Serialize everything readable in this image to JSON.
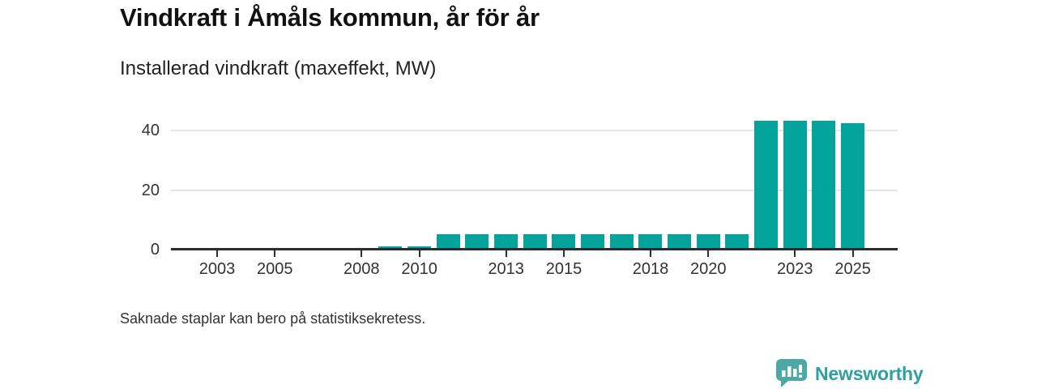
{
  "header": {
    "title": "Vindkraft i Åmåls kommun, år för år",
    "subtitle": "Installerad vindkraft (maxeffekt, MW)"
  },
  "chart_data": {
    "type": "bar",
    "title": "Vindkraft i Åmåls kommun, år för år",
    "subtitle": "Installerad vindkraft (maxeffekt, MW)",
    "ylabel": "Installerad vindkraft (maxeffekt, MW)",
    "xlabel": "",
    "unit": "MW",
    "categories": [
      2002,
      2003,
      2004,
      2005,
      2006,
      2007,
      2008,
      2009,
      2010,
      2011,
      2012,
      2013,
      2014,
      2015,
      2016,
      2017,
      2018,
      2019,
      2020,
      2021,
      2022,
      2023,
      2024,
      2025
    ],
    "values": [
      null,
      null,
      null,
      null,
      null,
      null,
      null,
      1.25,
      1.25,
      5.2,
      5.2,
      5.2,
      5.2,
      5.2,
      5.2,
      5.2,
      5.2,
      5.2,
      5.2,
      5.2,
      43.3,
      43.3,
      43.3,
      42.4
    ],
    "ylim": [
      0,
      47
    ],
    "yticks": [
      0,
      20,
      40
    ],
    "xticks_labeled": [
      2003,
      2005,
      2008,
      2010,
      2013,
      2015,
      2018,
      2020,
      2023,
      2025
    ],
    "grid": "horizontal",
    "legend": "none",
    "bar_color": "#04a49c"
  },
  "footnote": {
    "text": "Saknade staplar kan bero på statistiksekretess."
  },
  "brand": {
    "name": "Newsworthy",
    "text_color": "#2fa0a0",
    "icon_color": "#4aa9a5"
  }
}
